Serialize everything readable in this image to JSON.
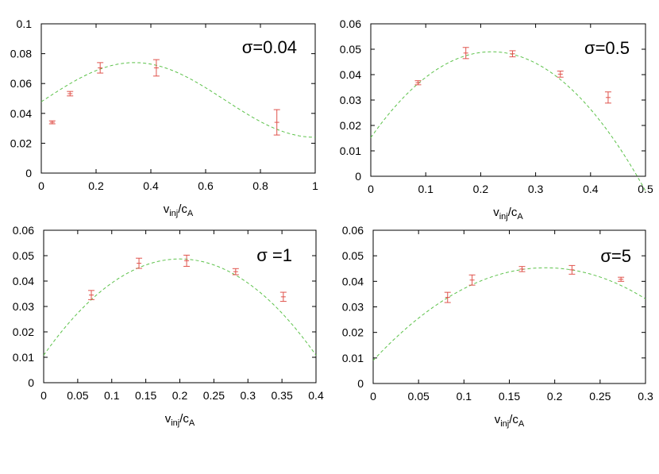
{
  "colors": {
    "points": "#e0534c",
    "fit": "#5cc24a",
    "axes": "#000000"
  },
  "chart_data": [
    {
      "type": "scatter",
      "annotation": "σ=0.04",
      "xlabel": {
        "base": "v",
        "sub1": "inj",
        "mid": "/c",
        "sub2": "A"
      },
      "xlim": [
        0,
        1
      ],
      "ylim": [
        0,
        0.1
      ],
      "xticks": [
        "0",
        "0.2",
        "0.4",
        "0.6",
        "0.8",
        "1"
      ],
      "yticks": [
        "0",
        "0.02",
        "0.04",
        "0.06",
        "0.08",
        "0.1"
      ],
      "points": [
        {
          "x": 0.04,
          "y": 0.034,
          "err": 0.001
        },
        {
          "x": 0.105,
          "y": 0.0532,
          "err": 0.0015
        },
        {
          "x": 0.215,
          "y": 0.0705,
          "err": 0.0035
        },
        {
          "x": 0.42,
          "y": 0.0705,
          "err": 0.0055
        },
        {
          "x": 0.86,
          "y": 0.034,
          "err": 0.0085
        }
      ],
      "fit": {
        "kind": "cosine",
        "c": 0.049,
        "a": 0.025,
        "x0": 0.34,
        "period": 1.32
      }
    },
    {
      "type": "scatter",
      "annotation": "σ=0.5",
      "xlabel": {
        "base": "v",
        "sub1": "inj",
        "mid": "/c",
        "sub2": "A"
      },
      "xlim": [
        0,
        0.5
      ],
      "ylim": [
        0,
        0.06
      ],
      "xticks": [
        "0",
        "0.1",
        "0.2",
        "0.3",
        "0.4",
        "0.5"
      ],
      "yticks": [
        "0",
        "0.01",
        "0.02",
        "0.03",
        "0.04",
        "0.05",
        "0.06"
      ],
      "points": [
        {
          "x": 0.086,
          "y": 0.0368,
          "err": 0.0008
        },
        {
          "x": 0.173,
          "y": 0.0485,
          "err": 0.0022
        },
        {
          "x": 0.258,
          "y": 0.0482,
          "err": 0.0012
        },
        {
          "x": 0.345,
          "y": 0.0402,
          "err": 0.0012
        },
        {
          "x": 0.432,
          "y": 0.031,
          "err": 0.0022
        }
      ],
      "fit": {
        "kind": "quadratic",
        "vertex_x": 0.22,
        "vertex_y": 0.049,
        "y_at_0": 0.0152
      }
    },
    {
      "type": "scatter",
      "annotation": "σ =1",
      "xlabel": {
        "base": "v",
        "sub1": "inj",
        "mid": "/c",
        "sub2": "A"
      },
      "xlim": [
        0,
        0.4
      ],
      "ylim": [
        0,
        0.06
      ],
      "xticks": [
        "0",
        "0.05",
        "0.1",
        "0.15",
        "0.2",
        "0.25",
        "0.3",
        "0.35",
        "0.4"
      ],
      "yticks": [
        "0",
        "0.01",
        "0.02",
        "0.03",
        "0.04",
        "0.05",
        "0.06"
      ],
      "points": [
        {
          "x": 0.07,
          "y": 0.0345,
          "err": 0.0018
        },
        {
          "x": 0.14,
          "y": 0.047,
          "err": 0.002
        },
        {
          "x": 0.21,
          "y": 0.048,
          "err": 0.0022
        },
        {
          "x": 0.282,
          "y": 0.0437,
          "err": 0.0012
        },
        {
          "x": 0.352,
          "y": 0.0338,
          "err": 0.0018
        }
      ],
      "fit": {
        "kind": "quadratic",
        "vertex_x": 0.2,
        "vertex_y": 0.0487,
        "y_at_0": 0.0108
      }
    },
    {
      "type": "scatter",
      "annotation": "σ=5",
      "xlabel": {
        "base": "v",
        "sub1": "inj",
        "mid": "/c",
        "sub2": "A"
      },
      "xlim": [
        0,
        0.3
      ],
      "ylim": [
        0,
        0.06
      ],
      "xticks": [
        "0",
        "0.05",
        "0.1",
        "0.15",
        "0.2",
        "0.25",
        "0.3"
      ],
      "yticks": [
        "0",
        "0.01",
        "0.02",
        "0.03",
        "0.04",
        "0.05",
        "0.06"
      ],
      "points": [
        {
          "x": 0.082,
          "y": 0.0337,
          "err": 0.002
        },
        {
          "x": 0.109,
          "y": 0.0405,
          "err": 0.002
        },
        {
          "x": 0.164,
          "y": 0.0448,
          "err": 0.001
        },
        {
          "x": 0.219,
          "y": 0.0445,
          "err": 0.0017
        },
        {
          "x": 0.273,
          "y": 0.0408,
          "err": 0.0008
        }
      ],
      "fit": {
        "kind": "quadratic",
        "vertex_x": 0.19,
        "vertex_y": 0.0453,
        "y_at_0": 0.009
      }
    }
  ]
}
